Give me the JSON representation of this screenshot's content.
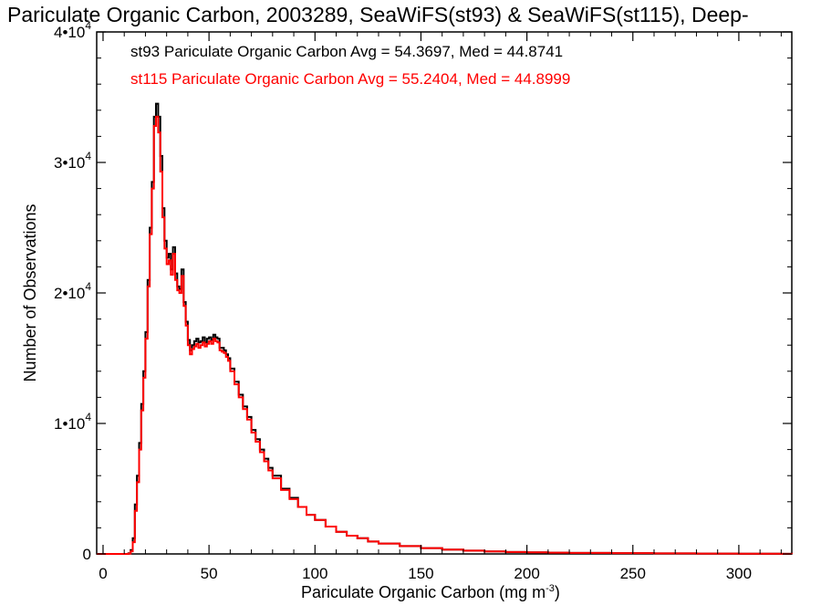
{
  "chart_data": {
    "type": "line",
    "title": "Pariculate Organic Carbon, 2003289, SeaWiFS(st93) & SeaWiFS(st115), Deep-",
    "xlabel": "Pariculate Organic Carbon (mg m",
    "xlabel_sup": "-3",
    "xlabel_close": ")",
    "ylabel": "Number of Observations",
    "xlim": [
      -3,
      325
    ],
    "ylim": [
      0,
      40000
    ],
    "x_ticks": [
      0,
      50,
      100,
      150,
      200,
      250,
      300
    ],
    "x_tick_labels": [
      "0",
      "50",
      "100",
      "150",
      "200",
      "250",
      "300"
    ],
    "y_ticks": [
      0,
      10000,
      20000,
      30000,
      40000
    ],
    "y_tick_labels": [
      {
        "base": "0",
        "exp": ""
      },
      {
        "base": "1•10",
        "exp": "4"
      },
      {
        "base": "2•10",
        "exp": "4"
      },
      {
        "base": "3•10",
        "exp": "4"
      },
      {
        "base": "4•10",
        "exp": "4"
      }
    ],
    "step": "histogram",
    "legend_placement": "top-left",
    "series": [
      {
        "name": "st93",
        "color": "#000000",
        "legend": "st93 Pariculate Organic Carbon Avg = 54.3697, Med = 44.8741",
        "x": [
          -3,
          12,
          13,
          14,
          15,
          16,
          17,
          18,
          19,
          20,
          21,
          22,
          23,
          24,
          25,
          26,
          27,
          28,
          29,
          30,
          31,
          32,
          33,
          34,
          35,
          36,
          37,
          38,
          39,
          40,
          41,
          42,
          43,
          44,
          45,
          46,
          47,
          48,
          49,
          50,
          51,
          52,
          53,
          54,
          55,
          56,
          57,
          58,
          59,
          60,
          62,
          64,
          66,
          68,
          70,
          72,
          74,
          76,
          78,
          80,
          84,
          88,
          92,
          96,
          100,
          105,
          110,
          115,
          120,
          125,
          130,
          140,
          150,
          160,
          170,
          180,
          190,
          200,
          210,
          220,
          240,
          260,
          280,
          300,
          320,
          325
        ],
        "y": [
          0,
          50,
          300,
          1200,
          3800,
          6000,
          8500,
          11500,
          14000,
          17000,
          21000,
          25000,
          28500,
          33500,
          34500,
          33500,
          30500,
          26500,
          24000,
          22700,
          23000,
          21800,
          23500,
          21500,
          20500,
          20300,
          21800,
          19300,
          17800,
          16400,
          15600,
          16000,
          16300,
          16500,
          16200,
          16300,
          16600,
          16200,
          16500,
          16600,
          16400,
          16800,
          16600,
          16500,
          15800,
          15800,
          15600,
          15300,
          15000,
          14200,
          13200,
          12200,
          11300,
          10500,
          9500,
          8800,
          8000,
          7300,
          6600,
          6000,
          5000,
          4300,
          3600,
          3000,
          2600,
          2100,
          1700,
          1400,
          1200,
          950,
          800,
          600,
          450,
          330,
          250,
          190,
          150,
          120,
          100,
          80,
          60,
          40,
          25,
          15,
          5,
          0
        ]
      },
      {
        "name": "st115",
        "color": "#ff0000",
        "legend": "st115 Pariculate Organic Carbon Avg = 55.2404, Med = 44.8999",
        "x": [
          -3,
          12,
          13,
          14,
          15,
          16,
          17,
          18,
          19,
          20,
          21,
          22,
          23,
          24,
          25,
          26,
          27,
          28,
          29,
          30,
          31,
          32,
          33,
          34,
          35,
          36,
          37,
          38,
          39,
          40,
          41,
          42,
          43,
          44,
          45,
          46,
          47,
          48,
          49,
          50,
          51,
          52,
          53,
          54,
          55,
          56,
          57,
          58,
          59,
          60,
          62,
          64,
          66,
          68,
          70,
          72,
          74,
          76,
          78,
          80,
          84,
          88,
          92,
          96,
          100,
          105,
          110,
          115,
          120,
          125,
          130,
          140,
          150,
          160,
          170,
          180,
          190,
          200,
          210,
          220,
          240,
          260,
          280,
          300,
          320,
          325
        ],
        "y": [
          0,
          30,
          200,
          900,
          3300,
          5500,
          8000,
          11000,
          13500,
          16500,
          20500,
          24500,
          28000,
          32800,
          33500,
          32300,
          29300,
          25800,
          23400,
          22200,
          22500,
          21400,
          23000,
          21000,
          20200,
          20000,
          21300,
          19000,
          17500,
          16000,
          15300,
          15700,
          15900,
          16100,
          15800,
          16000,
          16200,
          15900,
          16100,
          16300,
          16100,
          16500,
          16300,
          16200,
          15600,
          15500,
          15400,
          15100,
          14800,
          14000,
          13000,
          12000,
          11100,
          10300,
          9300,
          8600,
          7800,
          7100,
          6400,
          5800,
          4900,
          4200,
          3600,
          3000,
          2600,
          2100,
          1700,
          1400,
          1200,
          950,
          800,
          600,
          450,
          330,
          250,
          190,
          150,
          120,
          100,
          80,
          60,
          40,
          25,
          15,
          5,
          0
        ]
      }
    ]
  }
}
